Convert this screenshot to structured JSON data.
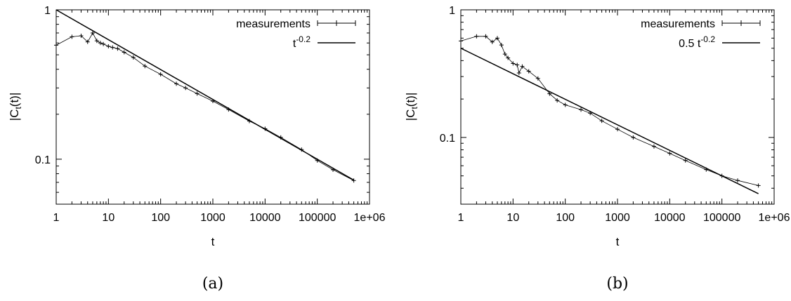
{
  "chart_data": [
    {
      "type": "line",
      "panel": "(a)",
      "caption": "(a)",
      "xlabel": "t",
      "ylabel_base": "|C",
      "ylabel_sub": "t",
      "ylabel_rest": "(t)|",
      "xscale": "log",
      "yscale": "log",
      "xlim": [
        1,
        1000000
      ],
      "ylim": [
        0.05,
        1
      ],
      "x_ticks": [
        1,
        10,
        100,
        1000,
        10000,
        100000,
        1000000
      ],
      "x_tick_labels": [
        "1",
        "10",
        "100",
        "1000",
        "10000",
        "100000",
        "1e+06"
      ],
      "y_ticks": [
        0.1,
        1
      ],
      "y_tick_labels": [
        "0.1",
        "1"
      ],
      "grid": false,
      "legend_position": "top-right",
      "series": [
        {
          "name": "measurements",
          "style": "points-errorbars",
          "x": [
            1,
            2,
            3,
            4,
            5,
            6,
            7,
            8,
            10,
            12,
            15,
            20,
            30,
            50,
            100,
            200,
            300,
            500,
            1000,
            2000,
            5000,
            10000,
            20000,
            50000,
            100000,
            200000,
            500000
          ],
          "y": [
            0.58,
            0.66,
            0.67,
            0.61,
            0.7,
            0.62,
            0.6,
            0.59,
            0.57,
            0.56,
            0.55,
            0.52,
            0.48,
            0.42,
            0.37,
            0.32,
            0.3,
            0.275,
            0.245,
            0.215,
            0.18,
            0.16,
            0.14,
            0.116,
            0.098,
            0.085,
            0.072
          ]
        },
        {
          "name": "t",
          "name_sup": "-0.2",
          "style": "line",
          "formula": {
            "a": 1,
            "b": -0.2
          }
        }
      ]
    },
    {
      "type": "line",
      "panel": "(b)",
      "caption": "(b)",
      "xlabel": "t",
      "ylabel_base": "|C",
      "ylabel_sub": "t",
      "ylabel_rest": "(t)|",
      "xscale": "log",
      "yscale": "log",
      "xlim": [
        1,
        1000000
      ],
      "ylim": [
        0.03,
        1
      ],
      "x_ticks": [
        1,
        10,
        100,
        1000,
        10000,
        100000,
        1000000
      ],
      "x_tick_labels": [
        "1",
        "10",
        "100",
        "1000",
        "10000",
        "100000",
        "1e+06"
      ],
      "y_ticks": [
        0.1,
        1
      ],
      "y_tick_labels": [
        "0.1",
        "1"
      ],
      "grid": false,
      "legend_position": "top-right",
      "series": [
        {
          "name": "measurements",
          "style": "points-errorbars",
          "x": [
            1,
            2,
            3,
            4,
            5,
            6,
            7,
            8,
            10,
            12,
            13,
            15,
            20,
            30,
            50,
            70,
            100,
            200,
            300,
            500,
            1000,
            2000,
            5000,
            10000,
            20000,
            50000,
            100000,
            200000,
            500000
          ],
          "y": [
            0.57,
            0.62,
            0.62,
            0.56,
            0.6,
            0.53,
            0.45,
            0.42,
            0.38,
            0.37,
            0.32,
            0.36,
            0.33,
            0.29,
            0.22,
            0.195,
            0.18,
            0.165,
            0.155,
            0.135,
            0.116,
            0.1,
            0.085,
            0.075,
            0.066,
            0.056,
            0.05,
            0.046,
            0.042
          ]
        },
        {
          "name": "0.5 t",
          "name_sup": "-0.2",
          "style": "line",
          "formula": {
            "a": 0.5,
            "b": -0.2
          }
        }
      ]
    }
  ]
}
